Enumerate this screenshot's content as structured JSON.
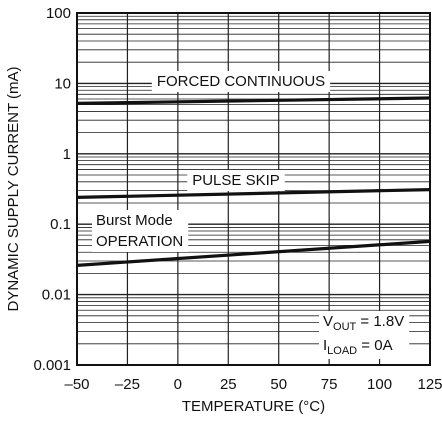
{
  "chart_data": {
    "type": "line",
    "xlabel": "TEMPERATURE (°C)",
    "ylabel": "DYNAMIC SUPPLY CURRENT (mA)",
    "x_ticks": [
      "–50",
      "–25",
      "0",
      "25",
      "50",
      "75",
      "100",
      "125"
    ],
    "y_ticks": [
      "0.001",
      "0.01",
      "0.1",
      "1",
      "10",
      "100"
    ],
    "xlim": [
      -50,
      125
    ],
    "ylim": [
      0.001,
      100
    ],
    "y_scale": "log",
    "grid": true,
    "series": [
      {
        "name": "FORCED CONTINUOUS",
        "x": [
          -50,
          125
        ],
        "y": [
          5.2,
          6.2
        ]
      },
      {
        "name": "PULSE SKIP",
        "x": [
          -50,
          125
        ],
        "y": [
          0.24,
          0.31
        ]
      },
      {
        "name": "Burst Mode OPERATION",
        "x": [
          -50,
          125
        ],
        "y": [
          0.026,
          0.057
        ]
      }
    ],
    "labels": {
      "forced": "FORCED CONTINUOUS",
      "pulse": "PULSE SKIP",
      "burst_line1": "Burst Mode",
      "burst_line2": "OPERATION"
    },
    "annotation": {
      "vout_main": "V",
      "vout_sub": "OUT",
      "vout_rest": " = 1.8V",
      "iload_main": "I",
      "iload_sub": "LOAD",
      "iload_rest": " = 0A"
    },
    "colors": {
      "line": "#111111",
      "grid": "#222222",
      "background": "#ffffff"
    }
  }
}
